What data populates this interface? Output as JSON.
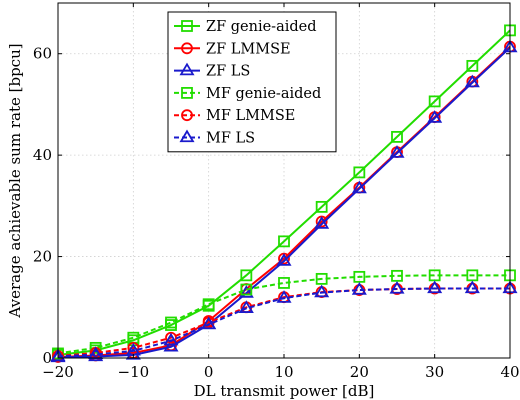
{
  "chart_data": {
    "type": "line",
    "xlabel": "DL transmit power [dB]",
    "ylabel": "Average achievable sum rate [bpcu]",
    "xlim": [
      -20,
      40
    ],
    "ylim": [
      0,
      70
    ],
    "xticks": [
      -20,
      -10,
      0,
      10,
      20,
      30,
      40
    ],
    "yticks": [
      0,
      20,
      40,
      60
    ],
    "xtick_labels": [
      "−20",
      "−10",
      "0",
      "10",
      "20",
      "30",
      "40"
    ],
    "ytick_labels": [
      "0",
      "20",
      "40",
      "60"
    ],
    "grid": true,
    "legend_position": "top-center",
    "x": [
      -20,
      -15,
      -10,
      -5,
      0,
      5,
      10,
      15,
      20,
      25,
      30,
      35,
      40
    ],
    "series": [
      {
        "name": "ZF genie-aided",
        "values": [
          0.6,
          1.5,
          3.5,
          6.5,
          10.3,
          16.3,
          23.0,
          29.8,
          36.6,
          43.6,
          50.6,
          57.6,
          64.6
        ],
        "color": "#22dd00",
        "dash": "solid",
        "marker": "square"
      },
      {
        "name": "ZF LMMSE",
        "values": [
          0.2,
          0.5,
          1.0,
          2.5,
          7.3,
          13.6,
          19.6,
          26.9,
          33.6,
          40.6,
          47.5,
          54.5,
          61.4
        ],
        "color": "#ff0000",
        "dash": "solid",
        "marker": "circle"
      },
      {
        "name": "ZF LS",
        "values": [
          0.1,
          0.3,
          0.6,
          2.2,
          6.6,
          12.8,
          19.1,
          26.4,
          33.4,
          40.4,
          47.3,
          54.3,
          61.2
        ],
        "color": "#1a1acc",
        "dash": "solid",
        "marker": "triangle"
      },
      {
        "name": "MF genie-aided",
        "values": [
          0.9,
          2.0,
          4.0,
          7.0,
          10.6,
          13.5,
          14.8,
          15.6,
          16.0,
          16.2,
          16.3,
          16.3,
          16.3
        ],
        "color": "#22dd00",
        "dash": "dashed",
        "marker": "square"
      },
      {
        "name": "MF LMMSE",
        "values": [
          0.4,
          1.0,
          2.0,
          4.0,
          7.0,
          10.0,
          12.0,
          13.0,
          13.4,
          13.6,
          13.7,
          13.7,
          13.7
        ],
        "color": "#ff0000",
        "dash": "dashed",
        "marker": "circle"
      },
      {
        "name": "MF LS",
        "values": [
          0.3,
          0.7,
          1.4,
          3.4,
          6.6,
          9.8,
          11.8,
          12.9,
          13.4,
          13.6,
          13.7,
          13.7,
          13.7
        ],
        "color": "#1a1acc",
        "dash": "dashed",
        "marker": "triangle"
      }
    ]
  }
}
